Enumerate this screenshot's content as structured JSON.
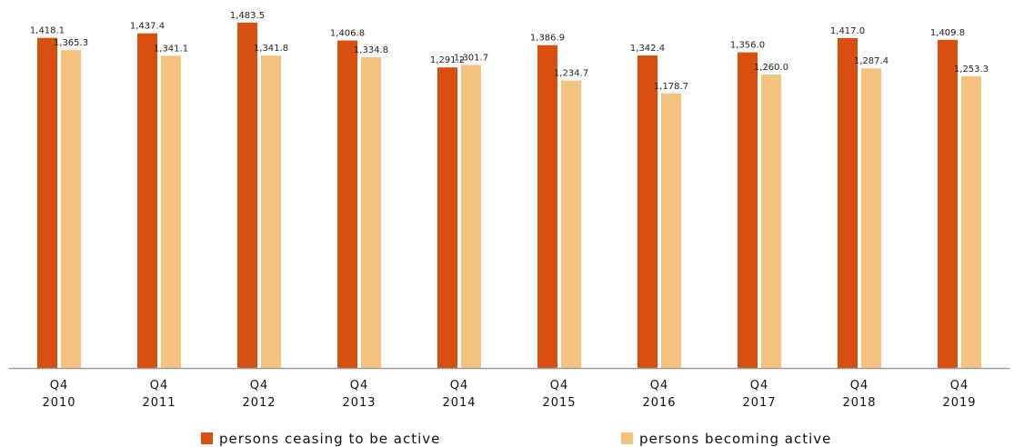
{
  "chart_data": {
    "type": "bar",
    "categories": [
      [
        "Q4",
        "2010"
      ],
      [
        "Q4",
        "2011"
      ],
      [
        "Q4",
        "2012"
      ],
      [
        "Q4",
        "2013"
      ],
      [
        "Q4",
        "2014"
      ],
      [
        "Q4",
        "2015"
      ],
      [
        "Q4",
        "2016"
      ],
      [
        "Q4",
        "2017"
      ],
      [
        "Q4",
        "2018"
      ],
      [
        "Q4",
        "2019"
      ]
    ],
    "series": [
      {
        "name": "persons ceasing to be active",
        "color": "#d94f0f",
        "values": [
          1418.1,
          1437.4,
          1483.5,
          1406.8,
          1291.2,
          1386.9,
          1342.4,
          1356.0,
          1417.0,
          1409.8
        ],
        "labels": [
          "1,418.1",
          "1,437.4",
          "1,483.5",
          "1,406.8",
          "1,291.2",
          "1,386.9",
          "1,342.4",
          "1,356.0",
          "1,417.0",
          "1,409.8"
        ]
      },
      {
        "name": "persons becoming active",
        "color": "#f5c27e",
        "values": [
          1365.3,
          1341.1,
          1341.8,
          1334.8,
          1301.7,
          1234.7,
          1178.7,
          1260.0,
          1287.4,
          1253.3
        ],
        "labels": [
          "1,365.3",
          "1,341.1",
          "1,341.8",
          "1,334.8",
          "1,301.7",
          "1,234.7",
          "1,178.7",
          "1,260.0",
          "1,287.4",
          "1,253.3"
        ]
      }
    ],
    "ylim": [
      0,
      1530
    ],
    "grid": false,
    "legend_position": "bottom"
  }
}
